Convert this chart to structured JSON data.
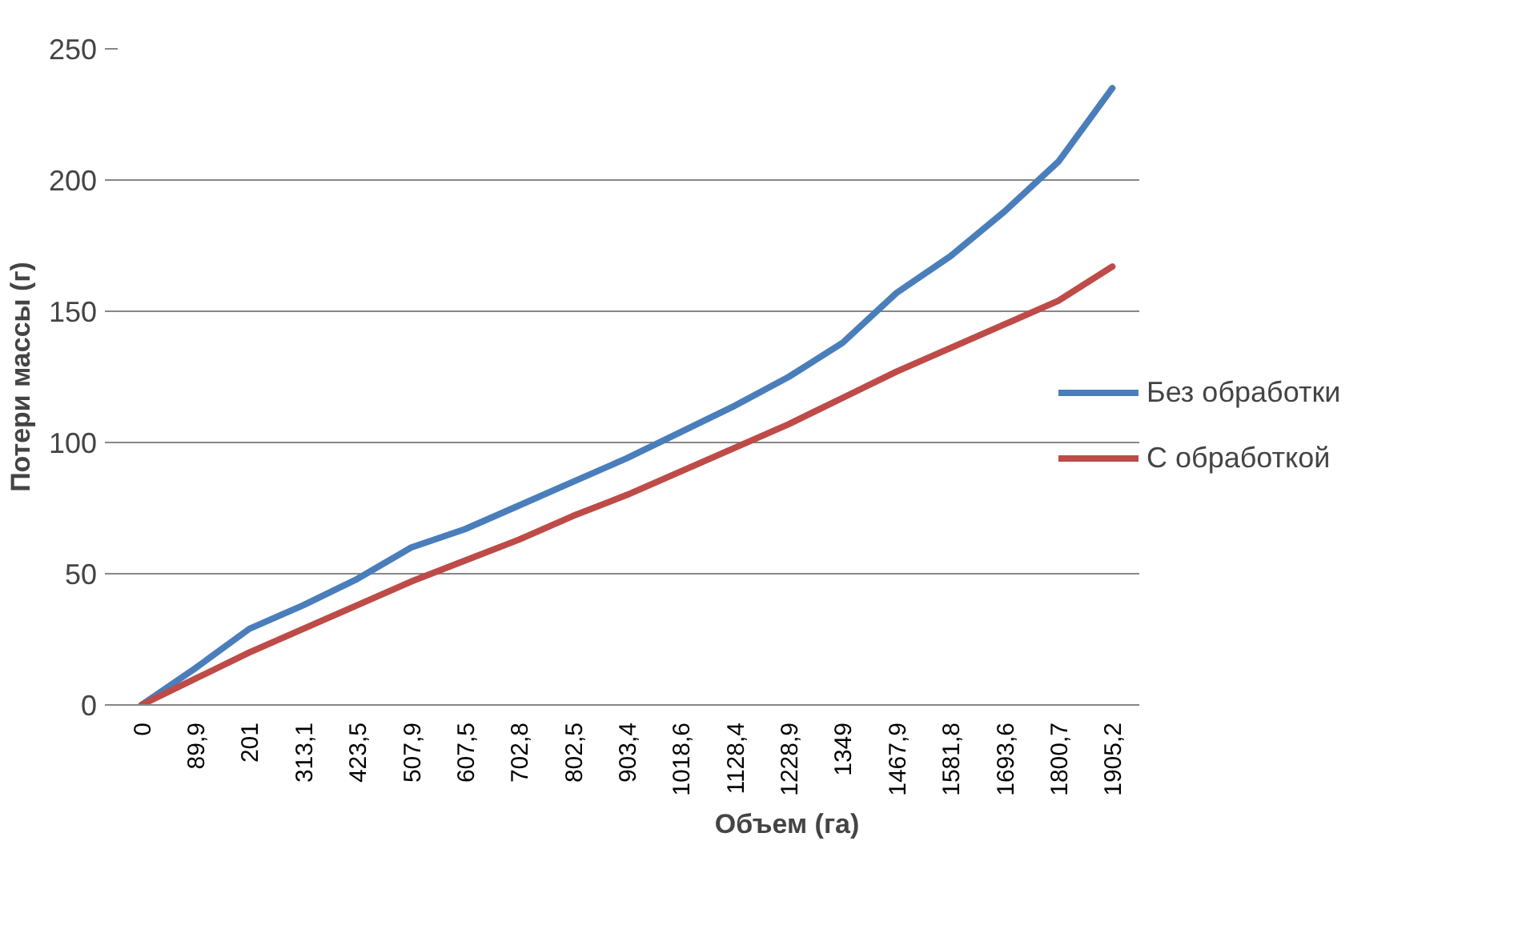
{
  "chart_data": {
    "type": "line",
    "xlabel": "Объем (га)",
    "ylabel": "Потери массы (г)",
    "categories": [
      "0",
      "89,9",
      "201",
      "313,1",
      "423,5",
      "507,9",
      "607,5",
      "702,8",
      "802,5",
      "903,4",
      "1018,6",
      "1128,4",
      "1228,9",
      "1349",
      "1467,9",
      "1581,8",
      "1693,6",
      "1800,7",
      "1905,2"
    ],
    "series": [
      {
        "name": "Без обработки",
        "color": "#4a7ebb",
        "values": [
          0,
          14,
          29,
          38,
          48,
          60,
          67,
          76,
          85,
          94,
          104,
          114,
          125,
          138,
          157,
          171,
          188,
          207,
          235
        ]
      },
      {
        "name": "С обработкой",
        "color": "#be4b48",
        "values": [
          0,
          10,
          20,
          29,
          38,
          47,
          55,
          63,
          72,
          80,
          89,
          98,
          107,
          117,
          127,
          136,
          145,
          154,
          167
        ]
      }
    ],
    "ylim": [
      0,
      250
    ],
    "yticks": [
      0,
      50,
      100,
      150,
      200,
      250
    ],
    "grid": "y",
    "legend": "right",
    "marker": "none",
    "line_style": "solid"
  }
}
